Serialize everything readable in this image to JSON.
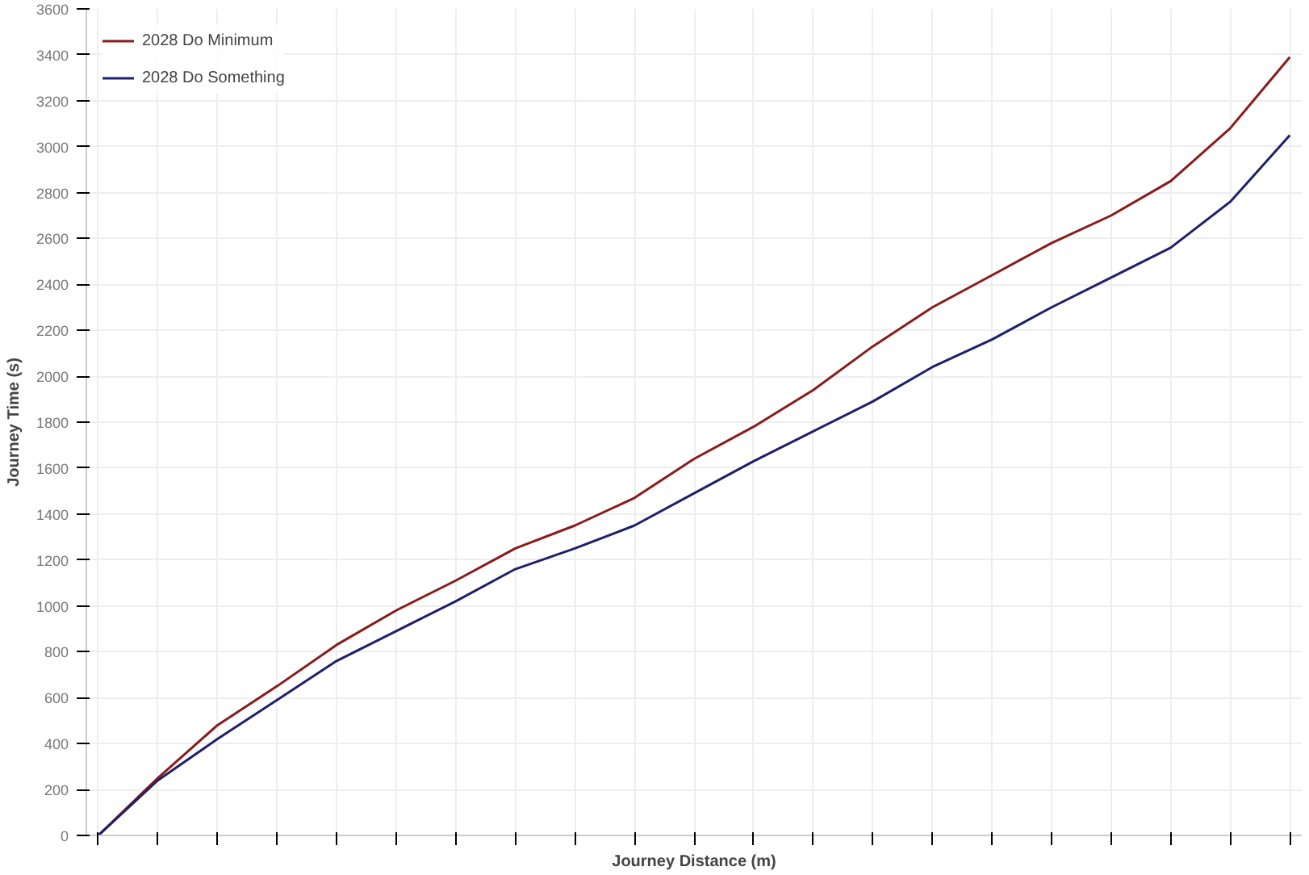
{
  "chart_data": {
    "type": "line",
    "xlabel": "Journey Distance (m)",
    "ylabel": "Journey Time (s)",
    "categories": [
      null,
      null,
      null,
      null,
      null,
      null,
      null,
      null,
      null,
      null,
      null,
      null,
      null,
      null,
      null,
      null,
      null,
      null,
      null,
      null,
      null
    ],
    "series": [
      {
        "name": "2028 Do Minimum",
        "color": "#8b1a1a",
        "values": [
          0,
          250,
          480,
          650,
          830,
          980,
          1110,
          1250,
          1350,
          1470,
          1640,
          1780,
          1940,
          2130,
          2300,
          2440,
          2580,
          2700,
          2850,
          3080,
          3390
        ]
      },
      {
        "name": "2028 Do Something",
        "color": "#1f1f6b",
        "values": [
          0,
          240,
          420,
          590,
          760,
          890,
          1020,
          1160,
          1250,
          1350,
          1490,
          1630,
          1760,
          1890,
          2040,
          2160,
          2300,
          2430,
          2560,
          2760,
          3050
        ]
      }
    ],
    "ylim": [
      0,
      3600
    ],
    "yticks": [
      0,
      200,
      400,
      600,
      800,
      1000,
      1200,
      1400,
      1600,
      1800,
      2000,
      2200,
      2400,
      2600,
      2800,
      3000,
      3200,
      3400,
      3600
    ],
    "grid": true,
    "legend": "top left",
    "tick_labels": "y"
  }
}
